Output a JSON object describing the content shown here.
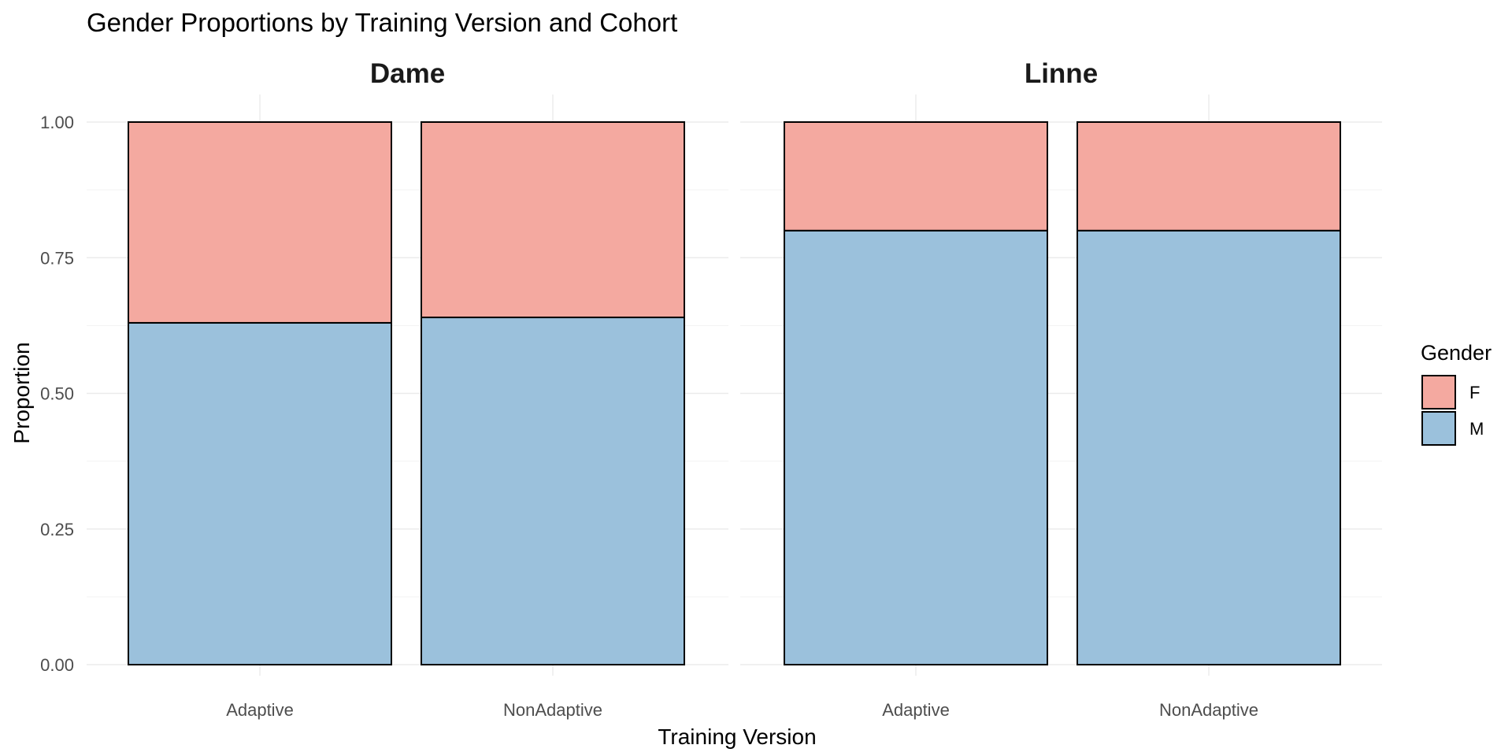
{
  "chart_data": {
    "type": "bar",
    "stacked": true,
    "title": "Gender Proportions by Training Version and Cohort",
    "xlabel": "Training Version",
    "ylabel": "Proportion",
    "ylim": [
      0,
      1
    ],
    "yticks": [
      "0.00",
      "0.25",
      "0.50",
      "0.75",
      "1.00"
    ],
    "ytick_values": [
      0,
      0.25,
      0.5,
      0.75,
      1.0
    ],
    "legend": {
      "title": "Gender",
      "position": "right"
    },
    "categories": [
      "Adaptive",
      "NonAdaptive"
    ],
    "facets": [
      {
        "name": "Dame",
        "series": [
          {
            "name": "M",
            "values": [
              0.63,
              0.64
            ]
          },
          {
            "name": "F",
            "values": [
              0.37,
              0.36
            ]
          }
        ]
      },
      {
        "name": "Linne",
        "series": [
          {
            "name": "M",
            "values": [
              0.8,
              0.8
            ]
          },
          {
            "name": "F",
            "values": [
              0.2,
              0.2
            ]
          }
        ]
      }
    ],
    "colors": {
      "F": "#f4a9a0",
      "M": "#9bc1dc"
    },
    "legend_order": [
      "F",
      "M"
    ],
    "grid": true
  }
}
